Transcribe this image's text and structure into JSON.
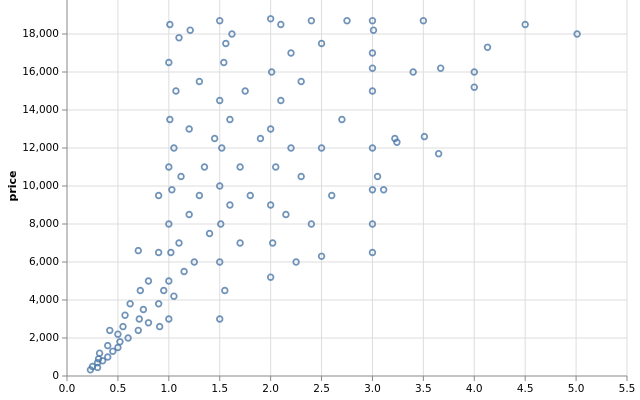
{
  "chart_data": {
    "type": "scatter",
    "y_label": "price",
    "color": "#4c78a8",
    "grid": true,
    "xlim": [
      0,
      5.5
    ],
    "ylim": [
      0,
      20000
    ],
    "xticks": [
      {
        "value": 0,
        "label": "0.0"
      },
      0.5,
      {
        "value": 1,
        "label": "1.0"
      },
      1.5,
      {
        "value": 2,
        "label": "2.0"
      },
      2.5,
      {
        "value": 3,
        "label": "3.0"
      },
      3.5,
      {
        "value": 4,
        "label": "4.0"
      },
      4.5,
      {
        "value": 5,
        "label": "5.0"
      },
      5.5
    ],
    "yticks": [
      0,
      {
        "value": 2000,
        "label": "2,000"
      },
      {
        "value": 4000,
        "label": "4,000"
      },
      {
        "value": 6000,
        "label": "6,000"
      },
      {
        "value": 8000,
        "label": "8,000"
      },
      {
        "value": 10000,
        "label": "10,000"
      },
      {
        "value": 12000,
        "label": "12,000"
      },
      {
        "value": 14000,
        "label": "14,000"
      },
      {
        "value": 16000,
        "label": "16,000"
      },
      {
        "value": 18000,
        "label": "18,000"
      }
    ],
    "x": [
      0.23,
      0.25,
      0.3,
      0.3,
      0.31,
      0.32,
      0.35,
      0.4,
      0.4,
      0.42,
      0.45,
      0.5,
      0.5,
      0.52,
      0.55,
      0.57,
      0.6,
      0.62,
      0.7,
      0.7,
      0.71,
      0.72,
      0.75,
      0.8,
      0.8,
      0.9,
      0.9,
      0.9,
      0.91,
      0.95,
      1.0,
      1.0,
      1.0,
      1.0,
      1.0,
      1.01,
      1.01,
      1.02,
      1.03,
      1.05,
      1.05,
      1.07,
      1.1,
      1.1,
      1.12,
      1.15,
      1.2,
      1.2,
      1.21,
      1.25,
      1.3,
      1.3,
      1.35,
      1.4,
      1.45,
      1.5,
      1.5,
      1.5,
      1.5,
      1.5,
      1.51,
      1.52,
      1.54,
      1.55,
      1.56,
      1.6,
      1.6,
      1.62,
      1.7,
      1.7,
      1.75,
      1.8,
      1.9,
      2.0,
      2.0,
      2.0,
      2.0,
      2.01,
      2.02,
      2.05,
      2.1,
      2.1,
      2.15,
      2.2,
      2.2,
      2.25,
      2.3,
      2.3,
      2.4,
      2.4,
      2.5,
      2.5,
      2.5,
      2.6,
      2.7,
      2.75,
      3.0,
      3.0,
      3.0,
      3.0,
      3.0,
      3.0,
      3.0,
      3.0,
      3.01,
      3.05,
      3.11,
      3.22,
      3.24,
      3.4,
      3.5,
      3.51,
      3.65,
      3.67,
      4.0,
      4.0,
      4.13,
      4.5,
      5.01
    ],
    "values": [
      326,
      500,
      450,
      700,
      900,
      1200,
      800,
      1000,
      1600,
      2400,
      1300,
      1500,
      2200,
      1800,
      2600,
      3200,
      2000,
      3800,
      6600,
      2400,
      3000,
      4500,
      3500,
      2800,
      5000,
      3800,
      6500,
      9500,
      2600,
      4500,
      3000,
      5000,
      8000,
      11000,
      16500,
      18500,
      13500,
      6500,
      9800,
      4200,
      12000,
      15000,
      7000,
      17800,
      10500,
      5500,
      8500,
      13000,
      18200,
      6000,
      9500,
      15500,
      11000,
      7500,
      12500,
      3000,
      6000,
      10000,
      14500,
      18700,
      8000,
      12000,
      16500,
      4500,
      17500,
      9000,
      13500,
      18000,
      11000,
      7000,
      15000,
      9500,
      12500,
      5200,
      9000,
      13000,
      18800,
      16000,
      7000,
      11000,
      14500,
      18500,
      8500,
      12000,
      17000,
      6000,
      10500,
      15500,
      8000,
      18700,
      6300,
      12000,
      17500,
      9500,
      13500,
      18700,
      6500,
      8000,
      9800,
      12000,
      15000,
      16200,
      17000,
      18700,
      18200,
      10500,
      9800,
      12500,
      12300,
      16000,
      18700,
      12600,
      11700,
      16200,
      16000,
      15200,
      17300,
      18500,
      18000
    ]
  }
}
